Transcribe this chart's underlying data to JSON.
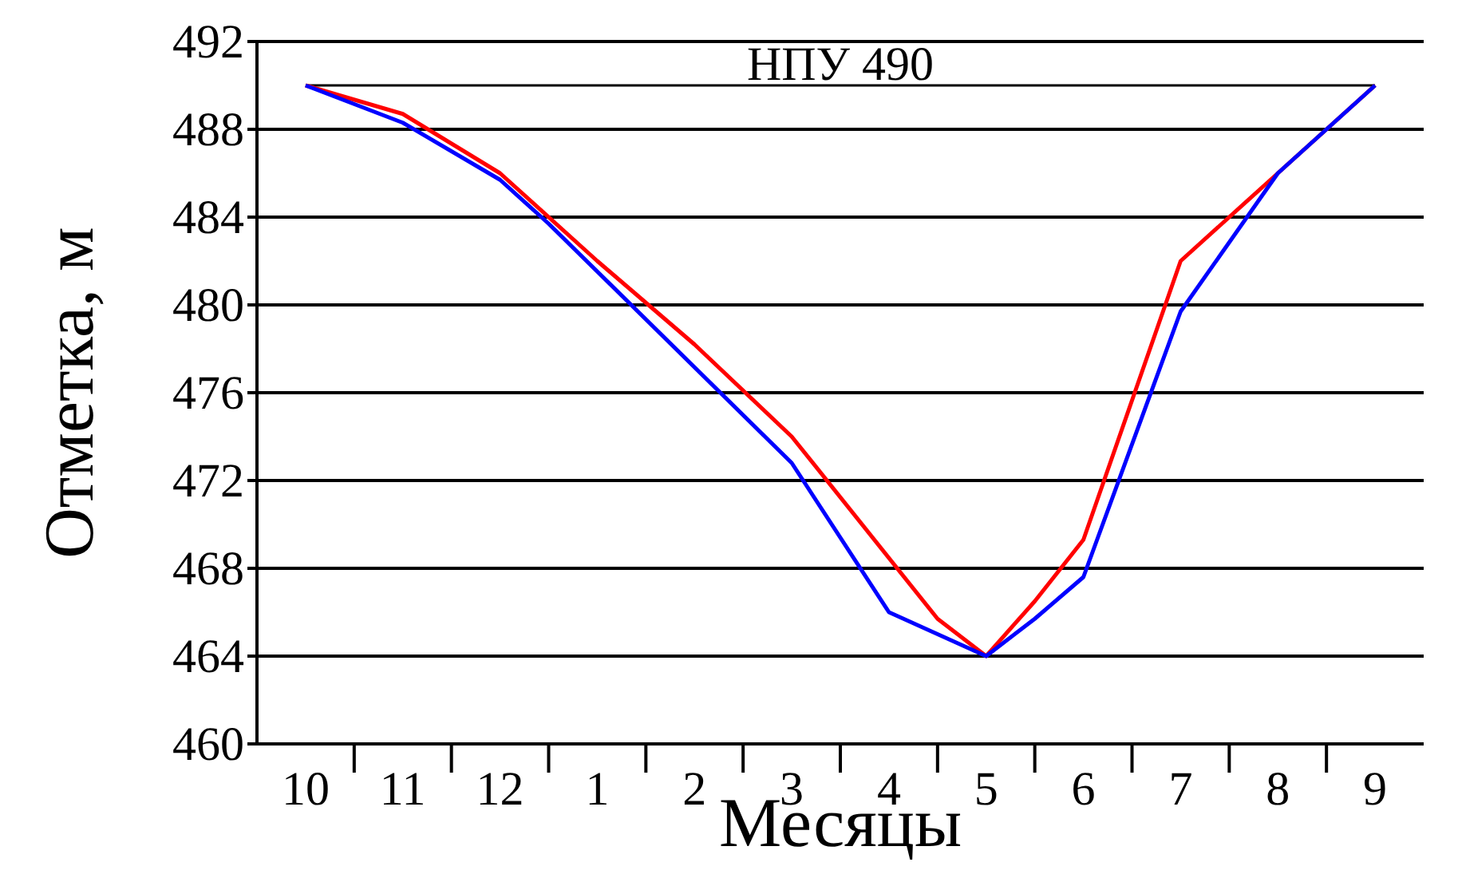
{
  "chart_data": {
    "type": "line",
    "xlabel": "Месяцы",
    "ylabel": "Отметка, м",
    "categories": [
      "10",
      null,
      "11",
      null,
      "12",
      null,
      "1",
      null,
      "2",
      null,
      "3",
      null,
      "4",
      null,
      "5",
      null,
      "6",
      null,
      "7",
      null,
      "8",
      null,
      "9"
    ],
    "ylim": [
      460,
      492
    ],
    "yticks": [
      460,
      464,
      468,
      472,
      476,
      480,
      484,
      488,
      492
    ],
    "grid": "y",
    "marker": "none",
    "line_style": "solid",
    "ref_lines": [
      {
        "axis": "y",
        "value": 490,
        "label": "НПУ 490",
        "color": "#000000"
      }
    ],
    "series": [
      {
        "color": "#ff0000",
        "values": [
          490,
          null,
          488.7,
          null,
          486,
          null,
          482,
          null,
          478.2,
          null,
          474,
          null,
          null,
          465.7,
          464,
          466.5,
          469.3,
          null,
          482,
          null,
          486,
          null,
          490
        ]
      },
      {
        "color": "#0000ff",
        "values": [
          490,
          null,
          488.3,
          null,
          485.7,
          483.7,
          null,
          null,
          null,
          null,
          472.8,
          null,
          466,
          null,
          464,
          465.7,
          467.6,
          null,
          479.7,
          null,
          486,
          null,
          490
        ]
      }
    ]
  }
}
